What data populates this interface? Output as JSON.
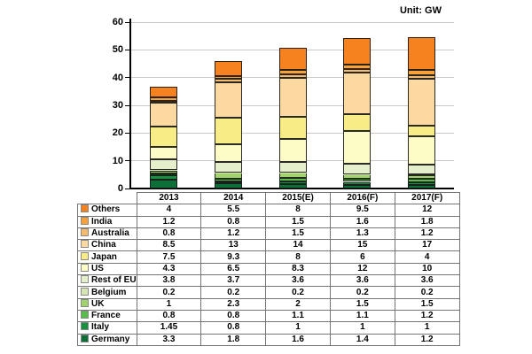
{
  "unit_label": "Unit: GW",
  "chart_data": {
    "type": "bar",
    "subtype": "stacked-vertical",
    "title": "",
    "unit": "GW",
    "categories": [
      "2013",
      "2014",
      "2015(E)",
      "2016(F)",
      "2017(F)"
    ],
    "series": [
      {
        "name": "Others",
        "color": "#F5821F",
        "values": [
          4,
          5.5,
          8,
          9.5,
          12
        ]
      },
      {
        "name": "India",
        "color": "#F9A23C",
        "values": [
          1.2,
          0.8,
          1.5,
          1.6,
          1.8
        ]
      },
      {
        "name": "Australia",
        "color": "#F3BA70",
        "values": [
          0.8,
          1.2,
          1.5,
          1.3,
          1.2
        ]
      },
      {
        "name": "China",
        "color": "#FBD9A0",
        "values": [
          8.5,
          13,
          14,
          15,
          17
        ]
      },
      {
        "name": "Japan",
        "color": "#F8EC86",
        "values": [
          7.5,
          9.3,
          8,
          6,
          4
        ]
      },
      {
        "name": "US",
        "color": "#FDFBC6",
        "values": [
          4.3,
          6.5,
          8.3,
          12,
          10
        ]
      },
      {
        "name": "Rest of EU",
        "color": "#E6EFCC",
        "values": [
          3.8,
          3.7,
          3.6,
          3.6,
          3.6
        ]
      },
      {
        "name": "Belgium",
        "color": "#D6E6B2",
        "values": [
          0.2,
          0.2,
          0.2,
          0.2,
          0.2
        ]
      },
      {
        "name": "UK",
        "color": "#A0D36B",
        "values": [
          1,
          2.3,
          2,
          1.5,
          1.5
        ]
      },
      {
        "name": "France",
        "color": "#5ABB4D",
        "values": [
          0.8,
          0.8,
          1.1,
          1.1,
          1.2
        ]
      },
      {
        "name": "Italy",
        "color": "#17913F",
        "values": [
          1.45,
          0.8,
          1,
          1,
          1
        ]
      },
      {
        "name": "Germany",
        "color": "#0D6E38",
        "values": [
          3.3,
          1.8,
          1.6,
          1.4,
          1.2
        ]
      }
    ],
    "ylim": [
      0,
      60
    ],
    "yticks": [
      0,
      10,
      20,
      30,
      40,
      50,
      60
    ],
    "grid": true,
    "stack_order": "reverse of series list (Germany at bottom, Others on top)",
    "legend_position": "left column of data table below chart",
    "axis_color": "#000000",
    "gridline_color": "#c9c9c9"
  }
}
